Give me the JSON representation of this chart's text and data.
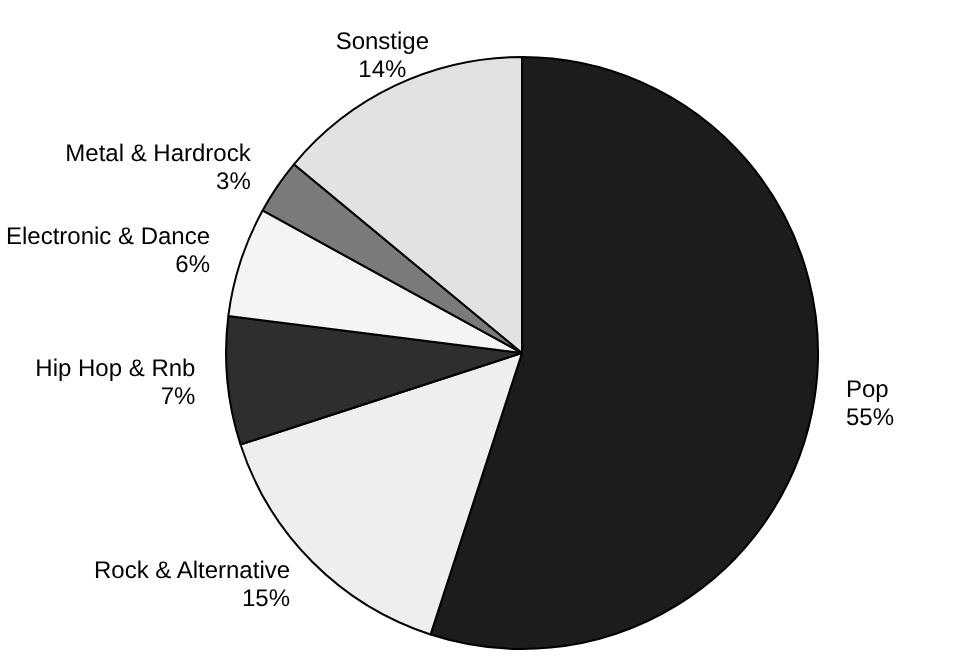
{
  "chart_data": {
    "type": "pie",
    "categories": [
      "Pop",
      "Rock & Alternative",
      "Hip Hop & Rnb",
      "Electronic & Dance",
      "Metal & Hardrock",
      "Sonstige"
    ],
    "values": [
      55,
      15,
      7,
      6,
      3,
      14
    ],
    "value_labels": [
      "55%",
      "15%",
      "7%",
      "6%",
      "3%",
      "14%"
    ],
    "colors": [
      "#1c1c1c",
      "#eeeeee",
      "#2e2e2e",
      "#f4f4f4",
      "#7a7a7a",
      "#e2e2e2"
    ],
    "legend": false
  }
}
